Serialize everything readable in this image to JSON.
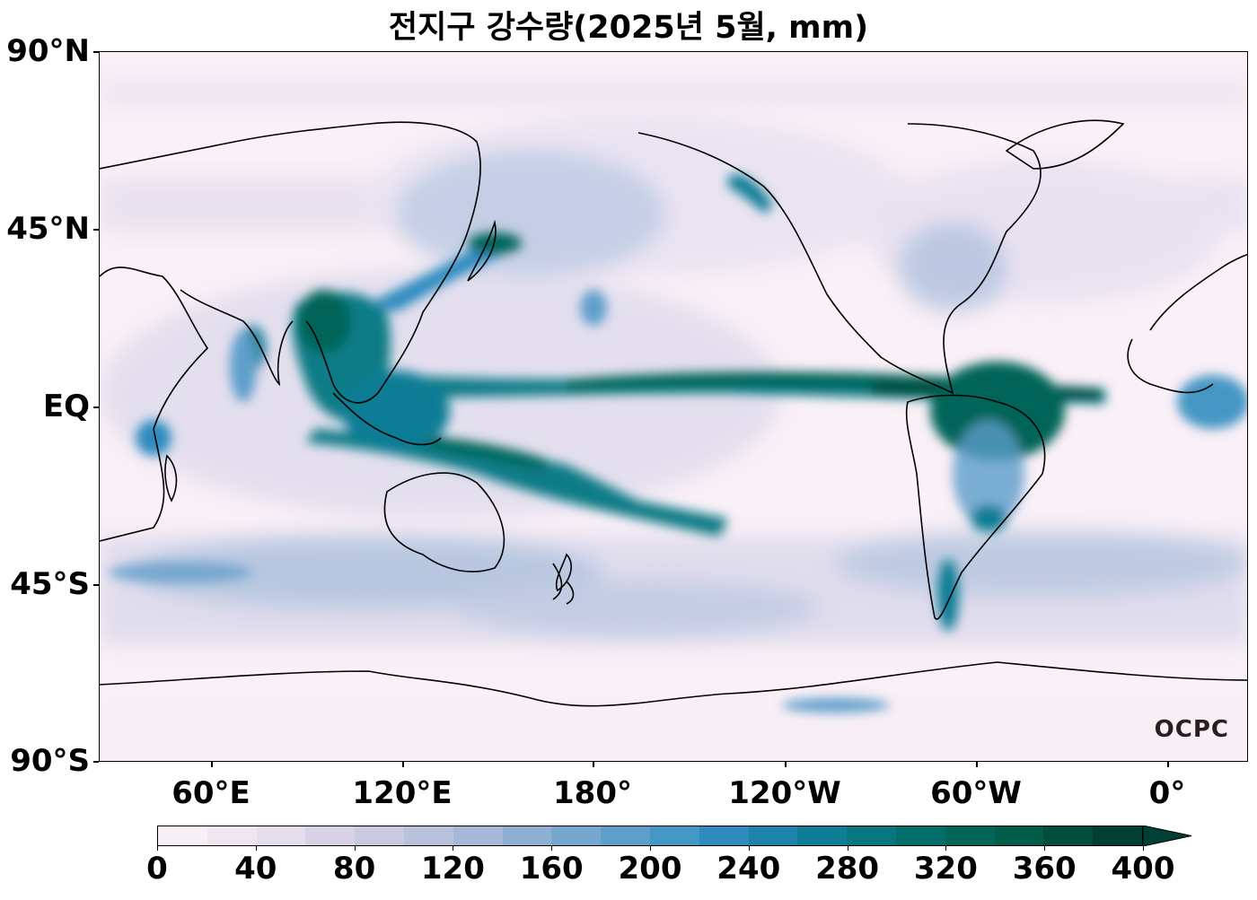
{
  "title": "전지구 강수량(2025년 5월, mm)",
  "map": {
    "projection": "PlateCarree",
    "central_longitude": "180°",
    "lat_labels": [
      "90°N",
      "45°N",
      "EQ",
      "45°S",
      "90°S"
    ],
    "lon_labels": [
      "60°E",
      "120°E",
      "180°",
      "120°W",
      "60°W",
      "0°"
    ],
    "logo": "OCPC"
  },
  "colorbar": {
    "ticks": [
      "0",
      "40",
      "80",
      "120",
      "160",
      "200",
      "240",
      "280",
      "320",
      "360",
      "400"
    ],
    "extend": "max",
    "colors": [
      "#f8f0f7",
      "#efe6f1",
      "#e5dcec",
      "#d9d2e7",
      "#c9cae1",
      "#b8c2dc",
      "#a5b8d7",
      "#8fb0d3",
      "#77a7ce",
      "#5e9fca",
      "#4496c5",
      "#2e8bbf",
      "#1d83ab",
      "#0f7d95",
      "#07767f",
      "#026e6b",
      "#016558",
      "#015c49",
      "#014d3e",
      "#013f35"
    ]
  }
}
